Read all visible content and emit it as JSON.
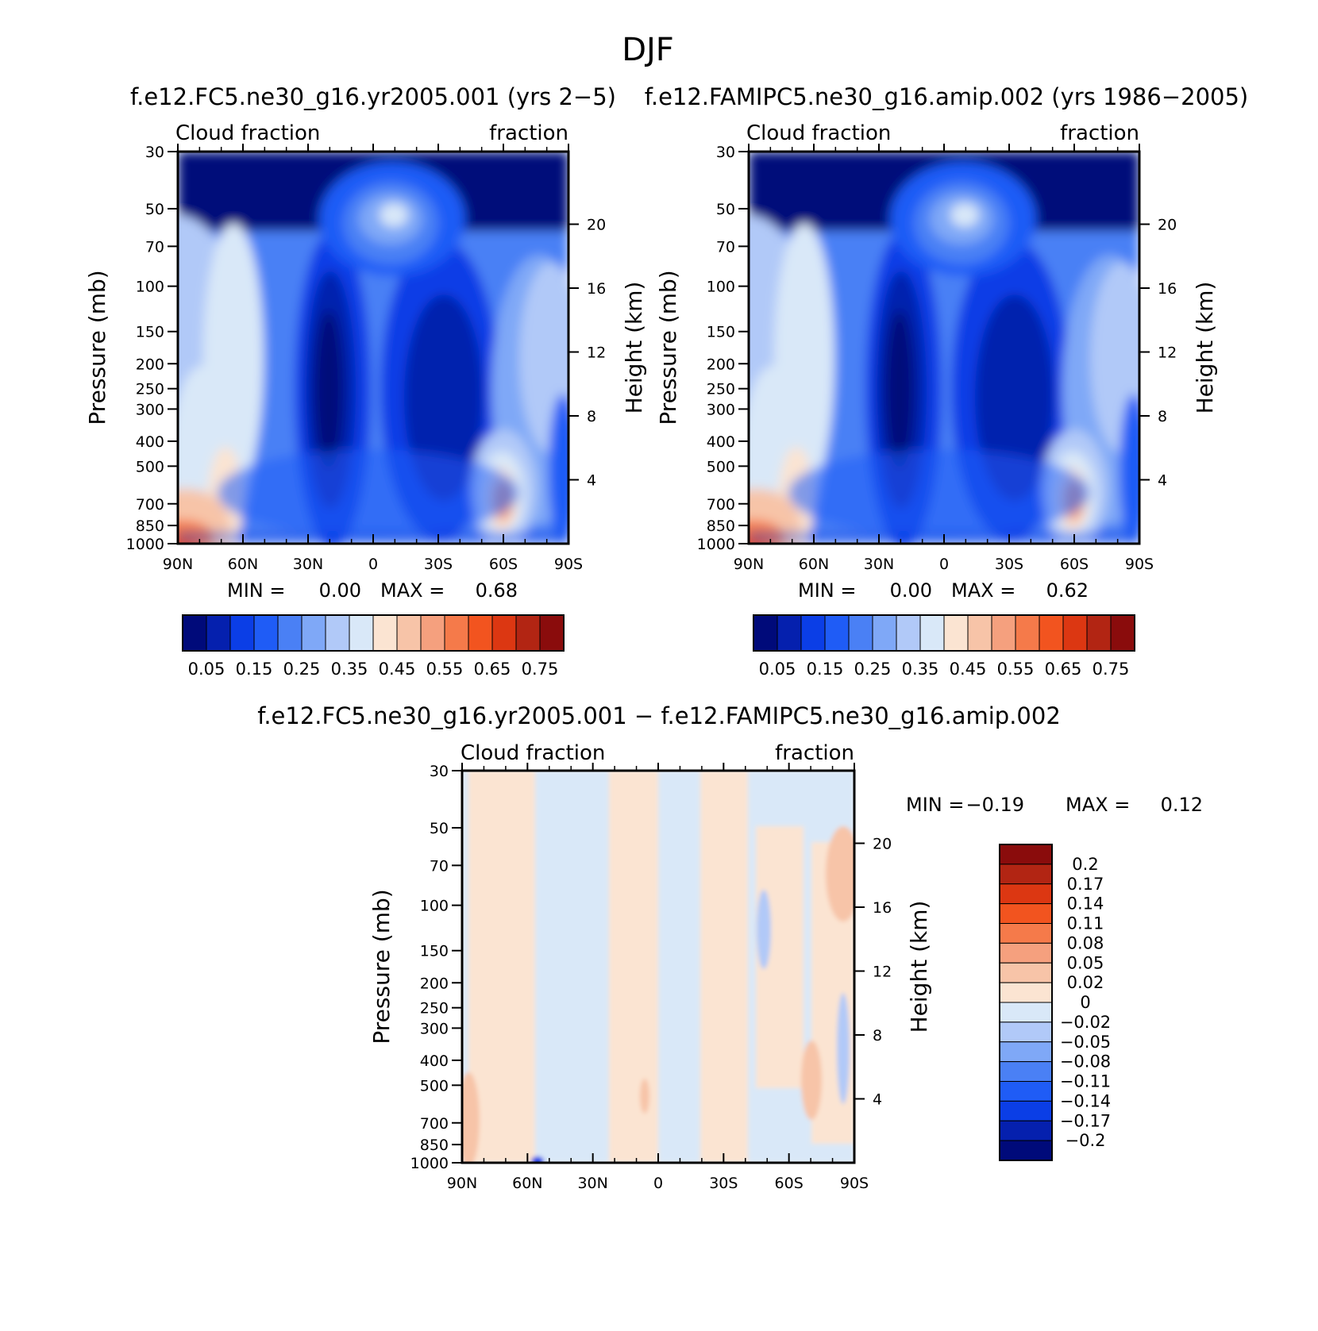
{
  "main_title": "DJF",
  "panels": [
    {
      "id": "left",
      "title": "f.e12.FC5.ne30_g16.yr2005.001 (yrs 2−5)",
      "label_left": "Cloud fraction",
      "label_right": "fraction",
      "ylabel": "Pressure (mb)",
      "ylabel_right": "Height (km)",
      "stats": {
        "min_label": "MIN =",
        "min": "0.00",
        "max_label": "MAX =",
        "max": "0.68"
      }
    },
    {
      "id": "right",
      "title": "f.e12.FAMIPC5.ne30_g16.amip.002 (yrs 1986−2005)",
      "label_left": "Cloud fraction",
      "label_right": "fraction",
      "ylabel": "Pressure (mb)",
      "ylabel_right": "Height (km)",
      "stats": {
        "min_label": "MIN =",
        "min": "0.00",
        "max_label": "MAX =",
        "max": "0.62"
      }
    },
    {
      "id": "diff",
      "title": "f.e12.FC5.ne30_g16.yr2005.001 − f.e12.FAMIPC5.ne30_g16.amip.002",
      "label_left": "Cloud fraction",
      "label_right": "fraction",
      "ylabel": "Pressure (mb)",
      "ylabel_right": "Height (km)",
      "stats": {
        "min_label": "MIN =",
        "min": "−0.19",
        "max_label": "MAX =",
        "max": "0.12"
      }
    }
  ],
  "chart_data": [
    {
      "type": "heatmap",
      "title": "f.e12.FC5.ne30_g16.yr2005.001 (yrs 2−5)",
      "x_ticks": [
        "90N",
        "60N",
        "30N",
        "0",
        "30S",
        "60S",
        "90S"
      ],
      "x_values": [
        90,
        60,
        30,
        0,
        -30,
        -60,
        -90
      ],
      "y_ticks": [
        "30",
        "50",
        "70",
        "100",
        "150",
        "200",
        "250",
        "300",
        "400",
        "500",
        "700",
        "850",
        "1000"
      ],
      "y_values": [
        30,
        50,
        70,
        100,
        150,
        200,
        250,
        300,
        400,
        500,
        700,
        850,
        1000
      ],
      "ylim": [
        1000,
        30
      ],
      "y_right_ticks": [
        "20",
        "16",
        "12",
        "8",
        "4"
      ],
      "y_right_values": [
        20,
        16,
        12,
        8,
        4
      ],
      "min": 0.0,
      "max": 0.68,
      "colorbar_levels": [
        0.05,
        0.1,
        0.15,
        0.2,
        0.25,
        0.3,
        0.35,
        0.4,
        0.45,
        0.5,
        0.55,
        0.6,
        0.65,
        0.7,
        0.75
      ],
      "colorbar_tick_labels": [
        "0.05",
        "0.15",
        "0.25",
        "0.35",
        "0.45",
        "0.55",
        "0.65",
        "0.75"
      ]
    },
    {
      "type": "heatmap",
      "title": "f.e12.FAMIPC5.ne30_g16.amip.002 (yrs 1986−2005)",
      "x_ticks": [
        "90N",
        "60N",
        "30N",
        "0",
        "30S",
        "60S",
        "90S"
      ],
      "x_values": [
        90,
        60,
        30,
        0,
        -30,
        -60,
        -90
      ],
      "y_ticks": [
        "30",
        "50",
        "70",
        "100",
        "150",
        "200",
        "250",
        "300",
        "400",
        "500",
        "700",
        "850",
        "1000"
      ],
      "y_values": [
        30,
        50,
        70,
        100,
        150,
        200,
        250,
        300,
        400,
        500,
        700,
        850,
        1000
      ],
      "ylim": [
        1000,
        30
      ],
      "y_right_ticks": [
        "20",
        "16",
        "12",
        "8",
        "4"
      ],
      "y_right_values": [
        20,
        16,
        12,
        8,
        4
      ],
      "min": 0.0,
      "max": 0.62,
      "colorbar_levels": [
        0.05,
        0.1,
        0.15,
        0.2,
        0.25,
        0.3,
        0.35,
        0.4,
        0.45,
        0.5,
        0.55,
        0.6,
        0.65,
        0.7,
        0.75
      ],
      "colorbar_tick_labels": [
        "0.05",
        "0.15",
        "0.25",
        "0.35",
        "0.45",
        "0.55",
        "0.65",
        "0.75"
      ]
    },
    {
      "type": "heatmap",
      "title": "f.e12.FC5.ne30_g16.yr2005.001 − f.e12.FAMIPC5.ne30_g16.amip.002",
      "x_ticks": [
        "90N",
        "60N",
        "30N",
        "0",
        "30S",
        "60S",
        "90S"
      ],
      "x_values": [
        90,
        60,
        30,
        0,
        -30,
        -60,
        -90
      ],
      "y_ticks": [
        "30",
        "50",
        "70",
        "100",
        "150",
        "200",
        "250",
        "300",
        "400",
        "500",
        "700",
        "850",
        "1000"
      ],
      "y_values": [
        30,
        50,
        70,
        100,
        150,
        200,
        250,
        300,
        400,
        500,
        700,
        850,
        1000
      ],
      "ylim": [
        1000,
        30
      ],
      "y_right_ticks": [
        "20",
        "16",
        "12",
        "8",
        "4"
      ],
      "y_right_values": [
        20,
        16,
        12,
        8,
        4
      ],
      "min": -0.19,
      "max": 0.12,
      "colorbar_tick_labels": [
        "0.2",
        "0.17",
        "0.14",
        "0.11",
        "0.08",
        "0.05",
        "0.02",
        "0",
        "−0.02",
        "−0.05",
        "−0.08",
        "−0.11",
        "−0.14",
        "−0.17",
        "−0.2"
      ]
    }
  ],
  "colors": {
    "seq": [
      "#000a7a",
      "#0520ae",
      "#0b3ee6",
      "#1f5cf6",
      "#4a80f5",
      "#7fa8f7",
      "#b1c9f8",
      "#d9e8f8",
      "#fbe4d2",
      "#f7c4a8",
      "#f5a07e",
      "#f57a4a",
      "#f2541f",
      "#dc3712",
      "#b22513",
      "#8a0c0c"
    ],
    "diff": [
      "#8a0c0c",
      "#b22513",
      "#dc3712",
      "#f2541f",
      "#f57a4a",
      "#f5a07e",
      "#f7c4a8",
      "#fbe4d2",
      "#d9e8f8",
      "#b1c9f8",
      "#7fa8f7",
      "#4a80f5",
      "#1f5cf6",
      "#0b3ee6",
      "#0520ae",
      "#000a7a"
    ]
  }
}
